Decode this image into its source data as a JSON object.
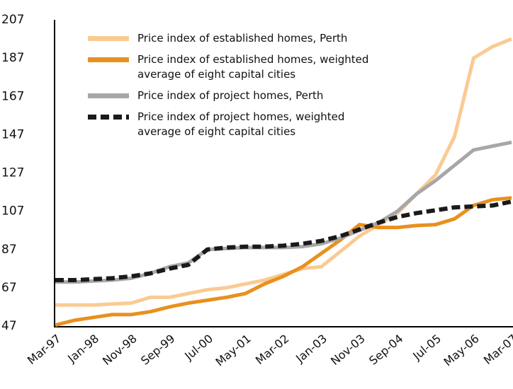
{
  "chart_data": {
    "type": "line",
    "categories": [
      "Mar-97",
      null,
      "Jan-98",
      null,
      "Nov-98",
      null,
      "Sep-99",
      null,
      "Jul-00",
      null,
      "May-01",
      null,
      "Mar-02",
      null,
      "Jan-03",
      null,
      "Nov-03",
      null,
      "Sep-04",
      null,
      "Jul-05",
      null,
      "May-06",
      null,
      "Mar-07"
    ],
    "ylim": [
      47,
      207
    ],
    "yticks": [
      47,
      67,
      87,
      107,
      127,
      147,
      167,
      187,
      207
    ],
    "legend": "upper left",
    "series": [
      {
        "name": "Price index of established homes, Perth",
        "color": "#f9cb93",
        "dash": false,
        "values": [
          58,
          58,
          58,
          58.5,
          59,
          62,
          62,
          64,
          66,
          67,
          69,
          71,
          74,
          77,
          78,
          86,
          94,
          100,
          106,
          116,
          126,
          146,
          187,
          193,
          197
        ]
      },
      {
        "name": "Price index of established homes, weighted average of eight capital cities",
        "color": "#e8901f",
        "dash": false,
        "values": [
          47.5,
          50,
          51.5,
          53,
          53,
          54.5,
          57,
          59,
          60.5,
          62,
          64,
          69,
          73,
          78,
          85,
          92,
          100,
          98.5,
          98.5,
          99.5,
          100,
          103,
          110,
          113,
          114
        ]
      },
      {
        "name": "Price index of project homes, Perth",
        "color": "#a7a7aa",
        "dash": false,
        "values": [
          70,
          70,
          70.5,
          71,
          72,
          74.5,
          78,
          80,
          87,
          87.5,
          88,
          88,
          88,
          88.5,
          90,
          93,
          97,
          101,
          107,
          116,
          123,
          131,
          139,
          141,
          143
        ]
      },
      {
        "name": "Price index of project homes, weighted average of eight capital cities",
        "color": "#1a1a1a",
        "dash": true,
        "values": [
          71,
          71,
          71.5,
          72,
          73,
          74.5,
          77,
          79,
          87,
          88,
          88.5,
          88.5,
          89,
          90,
          91.5,
          94,
          97.5,
          101,
          104,
          106,
          107.5,
          109,
          109.5,
          110,
          112
        ]
      }
    ]
  }
}
